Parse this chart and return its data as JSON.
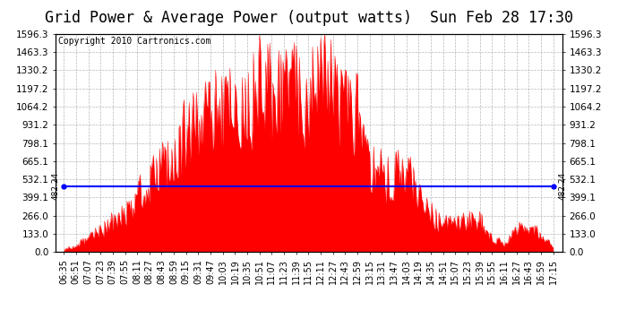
{
  "title": "Grid Power & Average Power (output watts)  Sun Feb 28 17:30",
  "copyright": "Copyright 2010 Cartronics.com",
  "average_line": 482.24,
  "average_label": "482.24",
  "ymax": 1596.3,
  "yticks": [
    0.0,
    133.0,
    266.0,
    399.1,
    532.1,
    665.1,
    798.1,
    931.2,
    1064.2,
    1197.2,
    1330.2,
    1463.3,
    1596.3
  ],
  "fill_color": "#ff0000",
  "line_color": "#0000ff",
  "background_color": "#ffffff",
  "plot_bg_color": "#ffffff",
  "grid_color": "#999999",
  "x_labels": [
    "06:35",
    "06:51",
    "07:07",
    "07:23",
    "07:39",
    "07:55",
    "08:11",
    "08:27",
    "08:43",
    "08:59",
    "09:15",
    "09:31",
    "09:47",
    "10:03",
    "10:19",
    "10:35",
    "10:51",
    "11:07",
    "11:23",
    "11:39",
    "11:55",
    "12:11",
    "12:27",
    "12:43",
    "12:59",
    "13:15",
    "13:31",
    "13:47",
    "14:03",
    "14:19",
    "14:35",
    "14:51",
    "15:07",
    "15:23",
    "15:39",
    "15:55",
    "16:11",
    "16:27",
    "16:43",
    "16:59",
    "17:15"
  ],
  "title_fontsize": 12,
  "tick_fontsize": 7.5,
  "copyright_fontsize": 7
}
